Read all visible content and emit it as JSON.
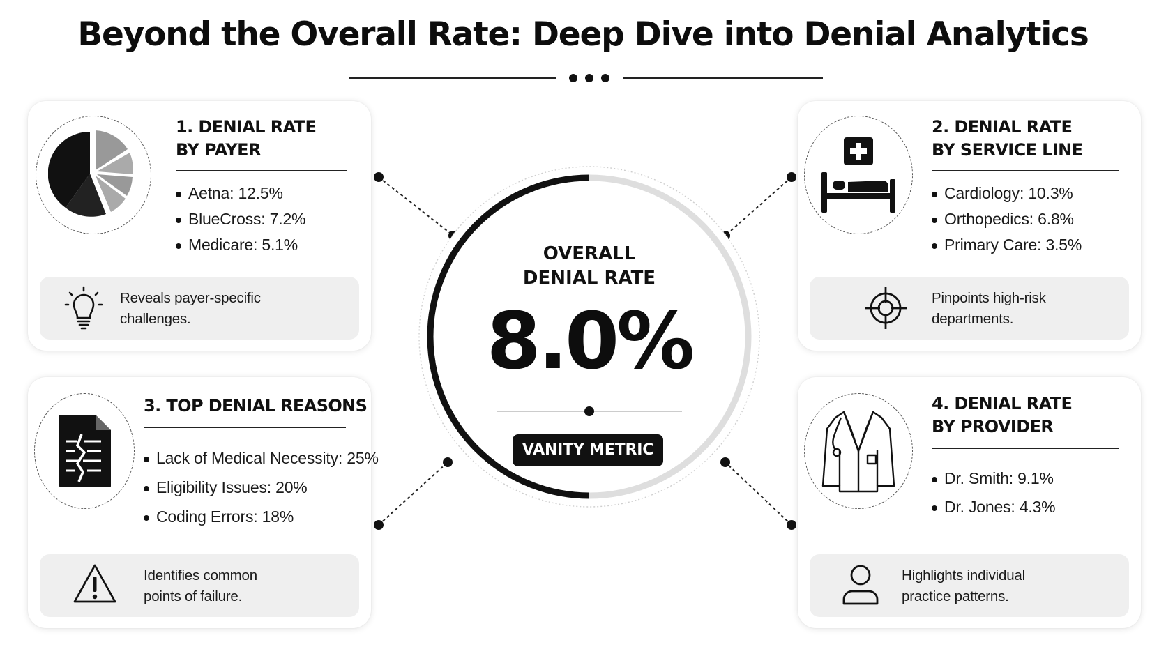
{
  "title": "Beyond the Overall Rate: Deep Dive into Denial Analytics",
  "center": {
    "label": "OVERALL\nDENIAL RATE",
    "value": "8.0%",
    "badge": "VANITY METRIC",
    "ring_fill_percent": 50
  },
  "cards": [
    {
      "title": "1. DENIAL RATE\nBY PAYER",
      "items": [
        "Aetna: 12.5%",
        "BlueCross: 7.2%",
        "Medicare: 5.1%"
      ],
      "note": "Reveals payer-specific\nchallenges.",
      "icon": "pie-chart-icon",
      "note_icon": "lightbulb-icon"
    },
    {
      "title": "2. DENIAL RATE\nBY SERVICE LINE",
      "items": [
        "Cardiology: 10.3%",
        "Orthopedics: 6.8%",
        "Primary Care: 3.5%"
      ],
      "note": "Pinpoints high-risk\ndepartments.",
      "icon": "hospital-bed-icon",
      "note_icon": "target-icon"
    },
    {
      "title": "3. TOP DENIAL REASONS",
      "items": [
        "Lack of Medical Necessity: 25%",
        "Eligibility Issues: 20%",
        "Coding Errors: 18%"
      ],
      "note": "Identifies common\npoints of failure.",
      "icon": "broken-document-icon",
      "note_icon": "warning-icon"
    },
    {
      "title": "4. DENIAL RATE\nBY PROVIDER",
      "items": [
        "Dr. Smith: 9.1%",
        "Dr. Jones: 4.3%"
      ],
      "note": "Highlights individual\npractice patterns.",
      "icon": "doctor-coat-icon",
      "note_icon": "person-icon"
    }
  ]
}
